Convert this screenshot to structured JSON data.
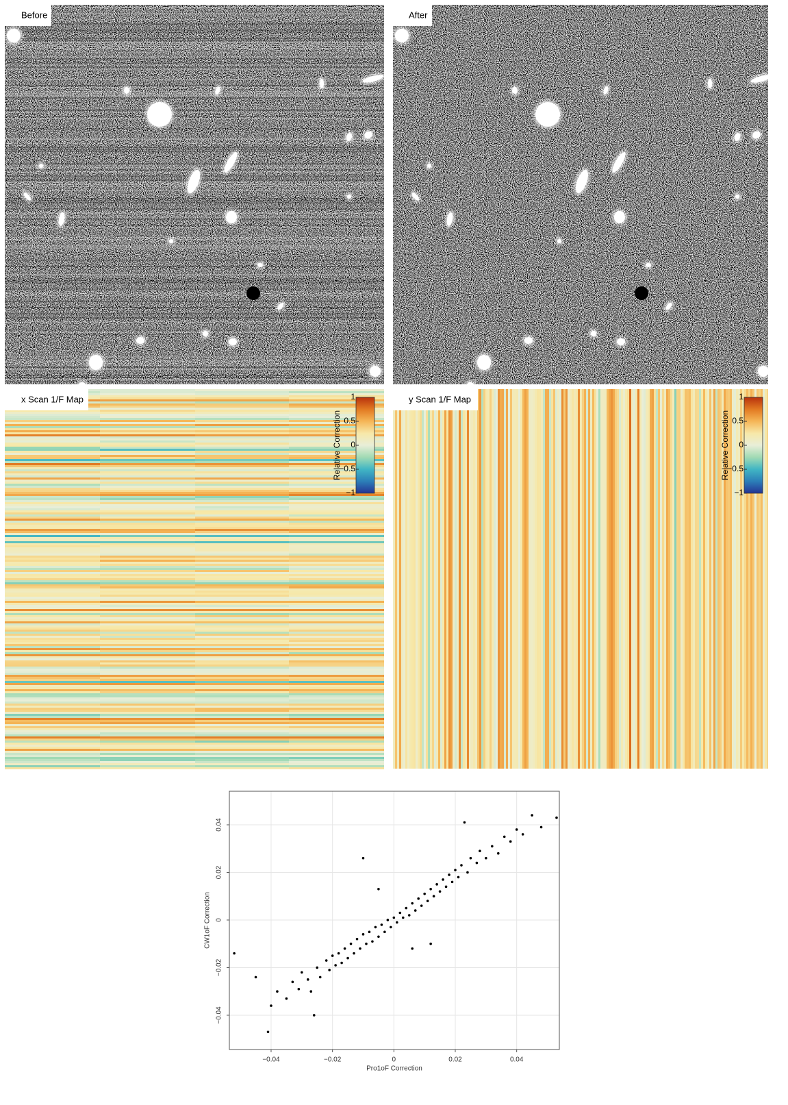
{
  "panels": {
    "before": "Before",
    "after": "After",
    "x_map": "x Scan 1/F Map",
    "y_map": "y Scan 1/F Map"
  },
  "colorbar": {
    "label": "Relative Correction",
    "lim": [
      -1,
      1
    ],
    "ticks": [
      1,
      0.5,
      0,
      {
        "value": -0.5,
        "label": "−0.5"
      },
      {
        "value": -1,
        "label": "−1"
      }
    ],
    "colors": [
      "#253494",
      "#2c7fb8",
      "#41b6c4",
      "#a1dab4",
      "#e8eed8",
      "#f7e8a8",
      "#f5b657",
      "#e27a22",
      "#b8320d"
    ]
  },
  "chart_data": {
    "type": "scatter",
    "x_label": "Pro1oF Correction",
    "y_label": "CW1oF Correction",
    "xlim": [
      -0.0536,
      0.0539
    ],
    "ylim": [
      -0.0544,
      0.0541
    ],
    "xticks": [
      {
        "value": -0.04,
        "label": "−0.04"
      },
      {
        "value": -0.02,
        "label": "−0.02"
      },
      0,
      0.02,
      0.04
    ],
    "yticks": [
      {
        "value": -0.04,
        "label": "−0.04"
      },
      {
        "value": -0.02,
        "label": "−0.02"
      },
      0,
      0.02,
      0.04
    ],
    "grid": true,
    "color": "#000000",
    "x": [
      -0.052,
      -0.045,
      -0.041,
      -0.04,
      -0.038,
      -0.035,
      -0.033,
      -0.031,
      -0.03,
      -0.028,
      -0.027,
      -0.025,
      -0.024,
      -0.022,
      -0.021,
      -0.02,
      -0.019,
      -0.018,
      -0.017,
      -0.016,
      -0.015,
      -0.014,
      -0.013,
      -0.012,
      -0.011,
      -0.01,
      -0.009,
      -0.008,
      -0.007,
      -0.006,
      -0.005,
      -0.004,
      -0.003,
      -0.002,
      -0.001,
      0,
      0.001,
      0.002,
      0.003,
      0.004,
      0.005,
      0.006,
      0.007,
      0.008,
      0.009,
      0.01,
      0.011,
      0.012,
      0.013,
      0.014,
      0.015,
      0.016,
      0.017,
      0.018,
      0.019,
      0.02,
      0.021,
      0.022,
      0.024,
      0.025,
      0.027,
      0.028,
      0.03,
      0.032,
      0.034,
      0.036,
      0.038,
      0.04,
      0.042,
      0.045,
      0.048,
      0.053,
      -0.01,
      0.012,
      -0.026,
      0.023,
      -0.005,
      0.006
    ],
    "values": [
      -0.014,
      -0.024,
      -0.047,
      -0.036,
      -0.03,
      -0.033,
      -0.026,
      -0.029,
      -0.022,
      -0.025,
      -0.03,
      -0.02,
      -0.024,
      -0.017,
      -0.021,
      -0.015,
      -0.019,
      -0.014,
      -0.018,
      -0.012,
      -0.016,
      -0.01,
      -0.014,
      -0.008,
      -0.012,
      -0.006,
      -0.01,
      -0.005,
      -0.009,
      -0.003,
      -0.007,
      -0.002,
      -0.005,
      0,
      -0.003,
      0.001,
      -0.001,
      0.003,
      0.001,
      0.005,
      0.002,
      0.007,
      0.004,
      0.009,
      0.006,
      0.011,
      0.008,
      0.013,
      0.01,
      0.015,
      0.012,
      0.017,
      0.014,
      0.019,
      0.016,
      0.021,
      0.018,
      0.023,
      0.02,
      0.026,
      0.024,
      0.029,
      0.026,
      0.031,
      0.028,
      0.035,
      0.033,
      0.038,
      0.036,
      0.044,
      0.039,
      0.043,
      0.026,
      -0.01,
      -0.04,
      0.041,
      0.013,
      -0.012
    ]
  }
}
